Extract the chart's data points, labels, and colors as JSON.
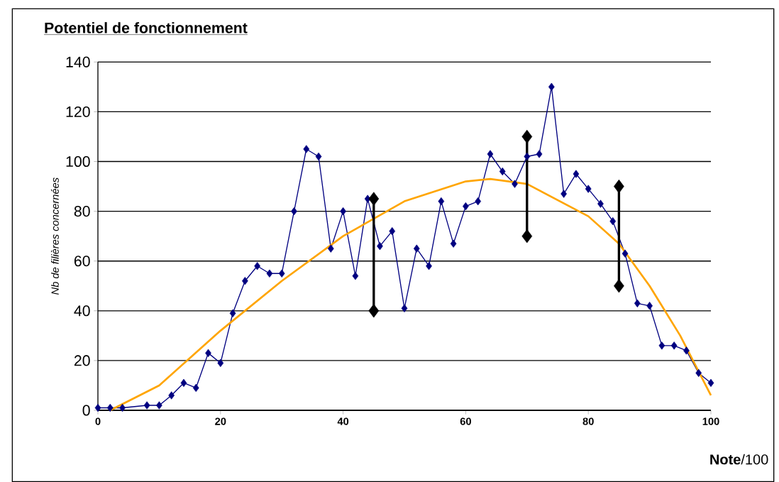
{
  "chart_data": {
    "type": "line",
    "title": "Potentiel de fonctionnement",
    "xlabel": "**Note**/100",
    "ylabel": "Nb de filières concernées",
    "xlim": [
      0,
      100
    ],
    "xticks": [
      0,
      20,
      40,
      60,
      80,
      100
    ],
    "ylim": [
      0,
      140
    ],
    "yticks": [
      0,
      20,
      40,
      60,
      80,
      100,
      120,
      140
    ],
    "grid": "y",
    "marker": "diamond",
    "series": [
      {
        "color": "#000080",
        "x": [
          0,
          2,
          4,
          8,
          10,
          12,
          14,
          16,
          18,
          20,
          22,
          24,
          26,
          28,
          30,
          32,
          34,
          36,
          38,
          40,
          42,
          44,
          46,
          48,
          50,
          52,
          54,
          56,
          58,
          60,
          62,
          64,
          66,
          68,
          70,
          72,
          74,
          76,
          78,
          80,
          82,
          84,
          86,
          88,
          90,
          92,
          94,
          96,
          98,
          100
        ],
        "values": [
          1,
          1,
          1,
          2,
          2,
          6,
          11,
          9,
          23,
          19,
          39,
          52,
          58,
          55,
          55,
          80,
          105,
          102,
          65,
          80,
          54,
          85,
          66,
          72,
          41,
          65,
          58,
          84,
          67,
          82,
          84,
          103,
          96,
          91,
          102,
          103,
          130,
          87,
          95,
          89,
          83,
          76,
          63,
          43,
          42,
          26,
          26,
          24,
          15,
          11
        ]
      },
      {
        "color": "#ffa500",
        "marker": "none",
        "x": [
          2,
          10,
          20,
          30,
          40,
          50,
          60,
          64,
          70,
          80,
          85,
          90,
          95,
          100
        ],
        "values": [
          0,
          10,
          32,
          52,
          70,
          84,
          92,
          93,
          91,
          78,
          67,
          50,
          30,
          6
        ]
      },
      {
        "color": "#000000",
        "x": [
          45,
          45
        ],
        "values": [
          40,
          85
        ]
      },
      {
        "color": "#000000",
        "x": [
          70,
          70
        ],
        "values": [
          70,
          110
        ]
      },
      {
        "color": "#000000",
        "x": [
          85,
          85
        ],
        "values": [
          50,
          90
        ]
      }
    ]
  }
}
